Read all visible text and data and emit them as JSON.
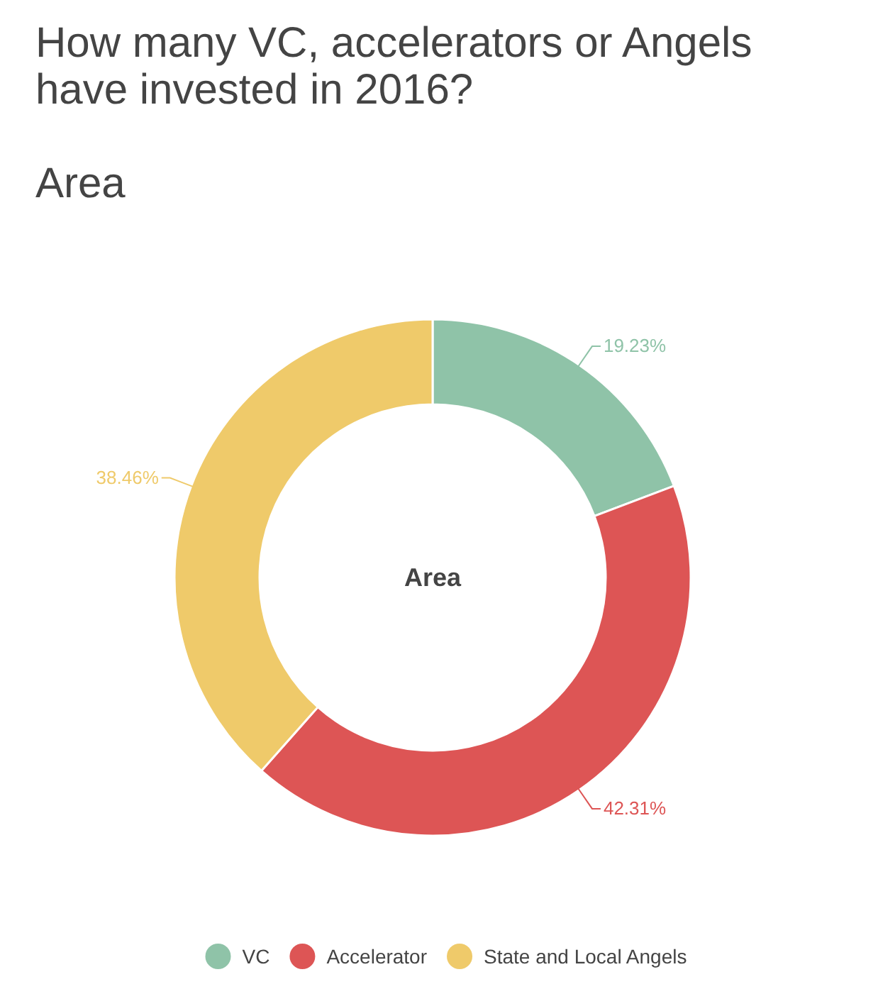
{
  "chart_data": {
    "type": "donut",
    "title": "How many VC, accelerators or Angels have invested in 2016?",
    "subtitle": "Area",
    "annotations": [
      "Area"
    ],
    "categories": [
      "VC",
      "Accelerator",
      "State and Local Angels"
    ],
    "values": [
      19.23,
      42.31,
      38.46
    ],
    "colors": [
      "#8fc3a8",
      "#dd5555",
      "#efca6a"
    ],
    "value_labels": [
      "19.23%",
      "42.31%",
      "38.46%"
    ],
    "legend": "bottom"
  }
}
